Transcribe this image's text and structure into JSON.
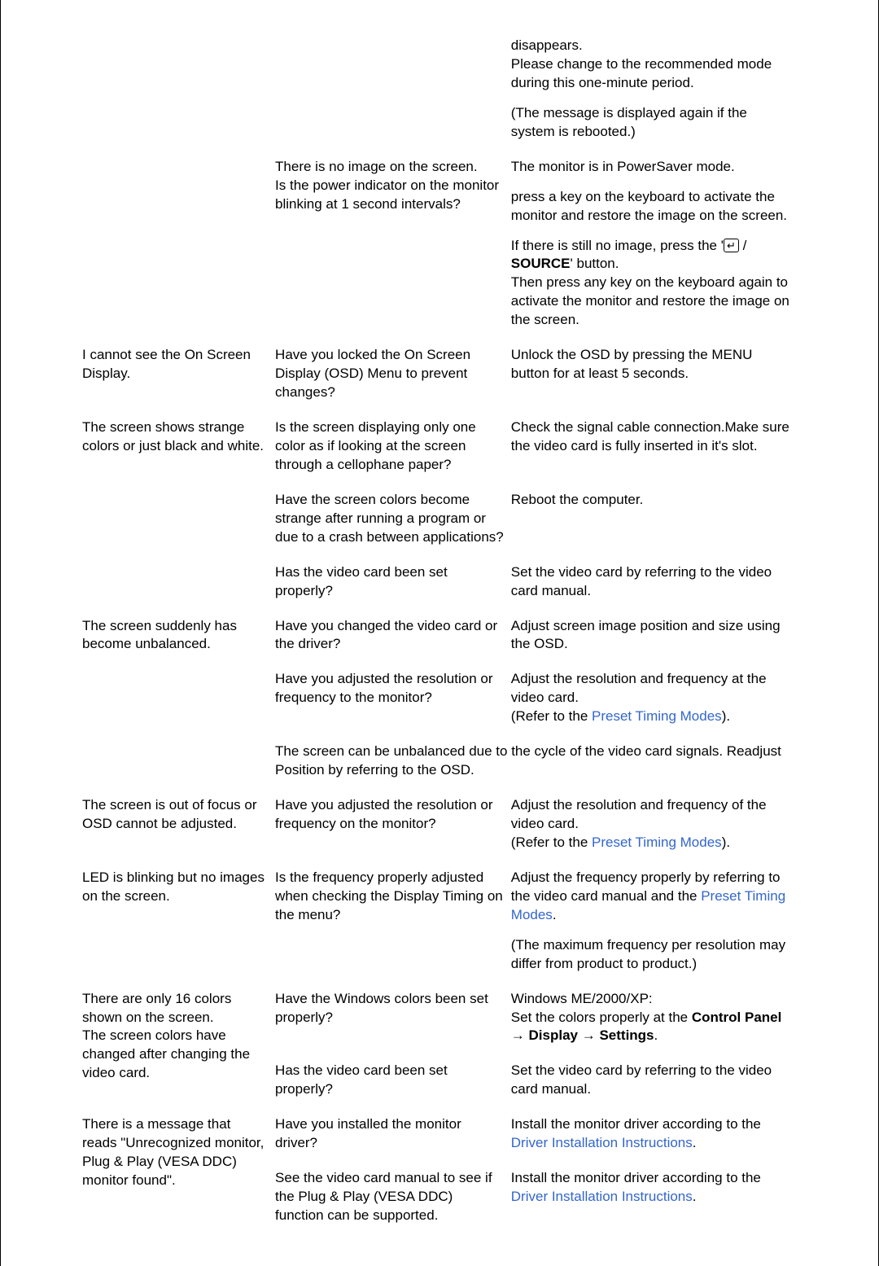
{
  "colors": {
    "text": "#000000",
    "link": "#3366cc",
    "bg": "#ffffff"
  },
  "typography": {
    "base_size_pt": 13
  },
  "rows": [
    {
      "c1": "",
      "c2": "",
      "c3_paras": [
        "disappears.\nPlease change to the recommended mode during this one-minute period.",
        "(The message is displayed again if the system is rebooted.)"
      ]
    },
    {
      "c1": "",
      "c2": "There is no image on the screen.\nIs the power indicator on the monitor blinking at 1 second intervals?",
      "c3_paras": [
        "The monitor is in PowerSaver mode.",
        "press a key on the keyboard to activate the monitor and restore the image on the screen.",
        "If there is still no image, press the '{ENTER} / {B}SOURCE{/B}' button.\nThen press any key on the keyboard again to activate the monitor and restore the image on the screen."
      ]
    },
    {
      "c1": "I cannot see the On Screen Display.",
      "c2": "Have you locked the On Screen Display (OSD) Menu to prevent changes?",
      "c3_paras": [
        "Unlock the OSD by pressing the MENU button for at least 5 seconds."
      ]
    },
    {
      "c1": "The screen shows strange colors or just black and white.",
      "c2": "Is the screen displaying only one color as if looking at the screen through a cellophane paper?",
      "c3_paras": [
        "Check the signal cable connection.Make sure the video card is fully inserted in it's slot."
      ]
    },
    {
      "c1": "",
      "c2": "Have the screen colors become strange after running a program or due to a crash between applications?",
      "c3_paras": [
        "Reboot the computer."
      ]
    },
    {
      "c1": "",
      "c2": "Has the video card been set properly?",
      "c3_paras": [
        "Set the video card by referring to the video card manual."
      ]
    },
    {
      "c1": "The screen suddenly has become unbalanced.",
      "c2": "Have you changed the video card or the driver?",
      "c3_paras": [
        "Adjust screen image position and size using the OSD."
      ]
    },
    {
      "c1": "",
      "c2": "Have you adjusted the resolution or frequency to the monitor?",
      "c3_paras": [
        "Adjust the resolution and frequency at the video card.\n(Refer to the {L}Preset Timing Modes{/L})."
      ]
    },
    {
      "span23": "The screen can be unbalanced due to the cycle of the video card signals. Readjust Position by referring to the OSD."
    },
    {
      "c1": "The screen is out of focus or OSD cannot be adjusted.",
      "c2": "Have you adjusted the resolution or frequency on the monitor?",
      "c3_paras": [
        "Adjust the resolution and frequency of the video card.\n(Refer to the {L}Preset Timing Modes{/L})."
      ]
    },
    {
      "c1": "LED is blinking but no images on the screen.",
      "c2": "Is the frequency properly adjusted when checking the Display Timing on the menu?",
      "c3_paras": [
        "Adjust the frequency properly by referring to the video card manual and the {L}Preset Timing Modes{/L}.",
        "(The maximum frequency per resolution may differ from product to product.)"
      ]
    },
    {
      "c1": "There are only 16 colors shown on the screen.\nThe screen colors have changed after changing the video card.",
      "c2": "Have the Windows colors been set properly?",
      "c3_paras": [
        "Windows ME/2000/XP:\nSet the colors properly at the {B}Control Panel{/B} → {B}Display{/B} → {B}Settings{/B}."
      ],
      "c1_rowspan": 2
    },
    {
      "c2": "Has the video card been set properly?",
      "c3_paras": [
        "Set the video card by referring to the video card manual."
      ]
    },
    {
      "c1": "There is a message that reads \"Unrecognized monitor, Plug & Play (VESA DDC) monitor found\".",
      "c2": "Have you installed the monitor driver?",
      "c3_paras": [
        "Install the monitor driver according to the {L}Driver Installation Instructions{/L}."
      ],
      "c1_rowspan": 2
    },
    {
      "c2": "See the video card manual to see if the Plug & Play (VESA DDC) function can be supported.",
      "c3_paras": [
        "Install the monitor driver according to the {L}Driver Installation Instructions{/L}."
      ]
    }
  ]
}
